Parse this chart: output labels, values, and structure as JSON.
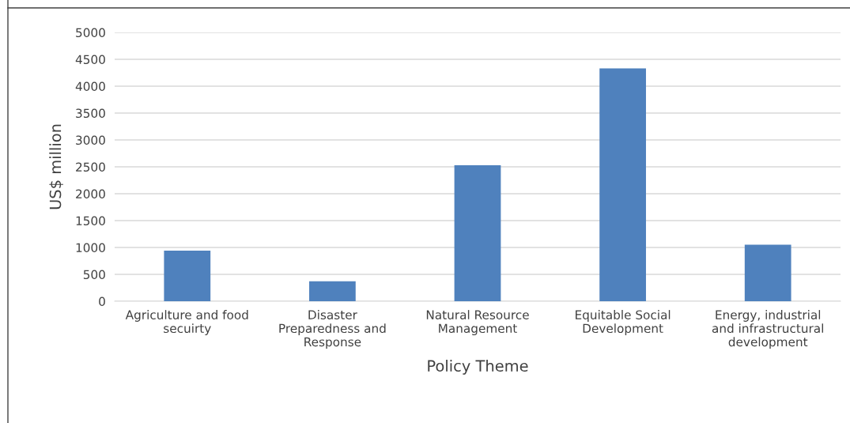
{
  "chart_data": {
    "type": "bar",
    "xlabel": "Policy Theme",
    "ylabel": "US$ million",
    "categories": [
      "Agriculture and food\nsecuirty",
      "Disaster\nPreparedness and\nResponse",
      "Natural Resource\nManagement",
      "Equitable Social\nDevelopment",
      "Energy, industrial\nand infrastructural\ndevelopment"
    ],
    "values": [
      940,
      370,
      2530,
      4330,
      1050
    ],
    "color": "#4f81bd",
    "ylim": [
      0,
      5000
    ],
    "yticks": [
      0,
      500,
      1000,
      1500,
      2000,
      2500,
      3000,
      3500,
      4000,
      4500,
      5000
    ],
    "grid": "y",
    "legend": false
  }
}
